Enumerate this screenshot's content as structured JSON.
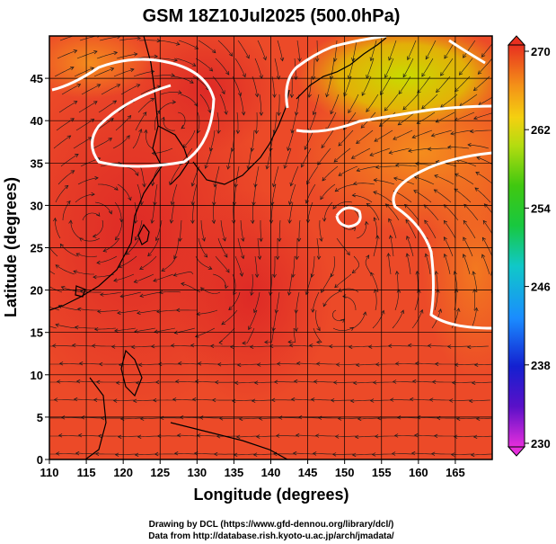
{
  "chart_data": {
    "type": "heatmap",
    "title": "GSM 18Z10Jul2025 (500.0hPa)",
    "xlabel": "Longitude (degrees)",
    "ylabel": "Latitude  (degrees)",
    "xlim": [
      110,
      170
    ],
    "ylim": [
      0,
      50
    ],
    "x_ticks": [
      110,
      115,
      120,
      125,
      130,
      135,
      140,
      145,
      150,
      155,
      160,
      165
    ],
    "y_ticks": [
      0,
      5,
      10,
      15,
      20,
      25,
      30,
      35,
      40,
      45
    ],
    "colorbar": {
      "min": 230,
      "max": 270,
      "ticks": [
        230,
        238,
        246,
        254,
        262,
        270
      ]
    },
    "grid": true,
    "overlay": "streamlines",
    "contours": [
      {
        "label": "upper-left loop",
        "level": 265
      },
      {
        "label": "northeast front",
        "level": 265
      },
      {
        "label": "small ring",
        "level": 265
      },
      {
        "label": "east boundary",
        "level": 265
      }
    ],
    "credits": [
      "Drawing by DCL (https://www.gfd-dennou.org/library/dcl/)",
      "Data from http://database.rish.kyoto-u.ac.jp/arch/jmadata/"
    ]
  },
  "colors": {
    "warm": "#e8462a",
    "hot": "#e02a28",
    "orange": "#f26c1a",
    "yellow_green": "#b8d400",
    "contour": "#ffffff",
    "frame": "#000000"
  }
}
